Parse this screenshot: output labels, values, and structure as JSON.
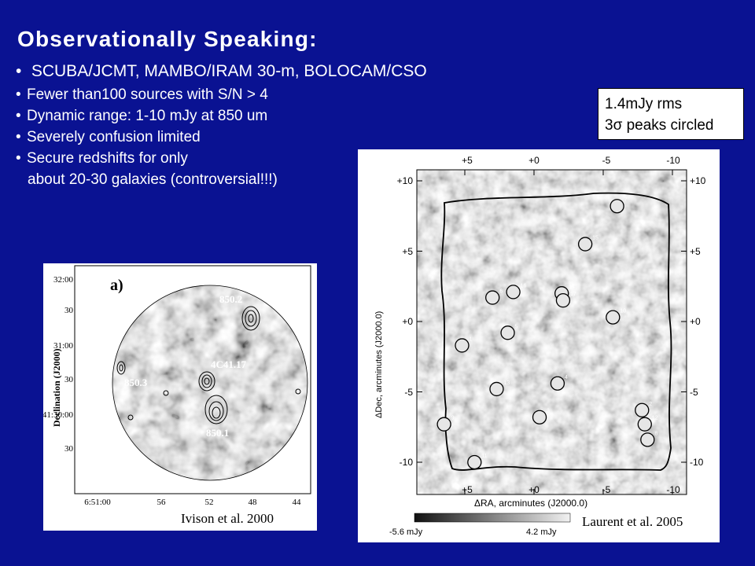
{
  "slide": {
    "title": "Observationally  Speaking:",
    "bullets": [
      "SCUBA/JCMT, MAMBO/IRAM 30-m, BOLOCAM/CSO",
      "Fewer than100 sources with S/N > 4",
      "Dynamic range: 1-10 mJy at 850 um",
      "Severely confusion limited",
      "Secure redshifts for only"
    ],
    "bullet_continuation": "about 20-30 galaxies (controversial!!!)",
    "note_box": {
      "line1": "1.4mJy rms",
      "line2": "3σ peaks circled"
    }
  },
  "figure_left": {
    "panel_label": "a)",
    "ylabel": "Declination (J2000)",
    "yticks": [
      "32:00",
      "30",
      "31:00",
      "30",
      "-41:30:00",
      "30"
    ],
    "xticks": [
      "6:51:00",
      "56",
      "52",
      "48",
      "44"
    ],
    "sources": [
      "850.2",
      "4C41.17",
      "850.3",
      "850.1"
    ],
    "caption": "Ivison et al. 2000"
  },
  "figure_right": {
    "xlabel": "ΔRA, arcminutes (J2000.0)",
    "ylabel": "ΔDec, arcminutes (J2000.0)",
    "xticks": [
      "+5",
      "+0",
      "-5",
      "-10"
    ],
    "yticks": [
      "+10",
      "+5",
      "+0",
      "-5",
      "-10"
    ],
    "colorbar_min": "-5.6 mJy",
    "colorbar_max": "4.2 mJy",
    "sources": [
      {
        "id": "1",
        "ra": 5.2,
        "dec": -1.7
      },
      {
        "id": "2",
        "ra": -7.8,
        "dec": -6.3
      },
      {
        "id": "3",
        "ra": -0.4,
        "dec": -6.8
      },
      {
        "id": "4",
        "ra": -1.7,
        "dec": -4.4
      },
      {
        "id": "5",
        "ra": 1.9,
        "dec": -0.8
      },
      {
        "id": "6",
        "ra": 3.0,
        "dec": 1.7
      },
      {
        "id": "7",
        "ra": -6.0,
        "dec": 8.2
      },
      {
        "id": "8",
        "ra": -8.2,
        "dec": -8.4
      },
      {
        "id": "9",
        "ra": 6.5,
        "dec": -7.3
      },
      {
        "id": "10",
        "ra": -5.7,
        "dec": 0.3
      },
      {
        "id": "11",
        "ra": 4.3,
        "dec": -10.0
      },
      {
        "id": "12",
        "ra": -8.0,
        "dec": -7.3
      },
      {
        "id": "13",
        "ra": 2.7,
        "dec": -4.8
      },
      {
        "id": "14",
        "ra": -2.0,
        "dec": 2.0
      },
      {
        "id": "15",
        "ra": -3.7,
        "dec": 5.5
      },
      {
        "id": "16",
        "ra": 1.5,
        "dec": 2.1
      },
      {
        "id": "17",
        "ra": -2.1,
        "dec": 1.5
      }
    ],
    "caption": "Laurent et al. 2005"
  },
  "colors": {
    "background": "#0a1292",
    "text": "#ffffff",
    "panel": "#ffffff",
    "source_circle": "#e6e6e6"
  }
}
